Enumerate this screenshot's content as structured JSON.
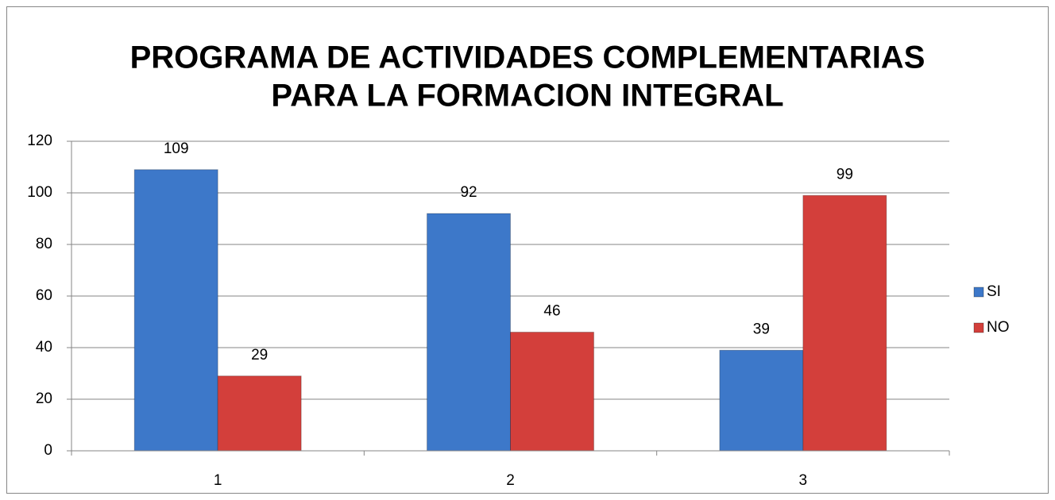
{
  "chart_data": {
    "type": "bar",
    "title": [
      "PROGRAMA DE ACTIVIDADES COMPLEMENTARIAS",
      "PARA LA FORMACION INTEGRAL"
    ],
    "categories": [
      "1",
      "2",
      "3"
    ],
    "series": [
      {
        "name": "SI",
        "color": "#3d78c9",
        "values": [
          109,
          92,
          39
        ]
      },
      {
        "name": "NO",
        "color": "#d33f3b",
        "values": [
          29,
          46,
          99
        ]
      }
    ],
    "ylim": [
      0,
      120
    ],
    "yticks": [
      0,
      20,
      40,
      60,
      80,
      100,
      120
    ],
    "grid": true,
    "legend": "right"
  }
}
